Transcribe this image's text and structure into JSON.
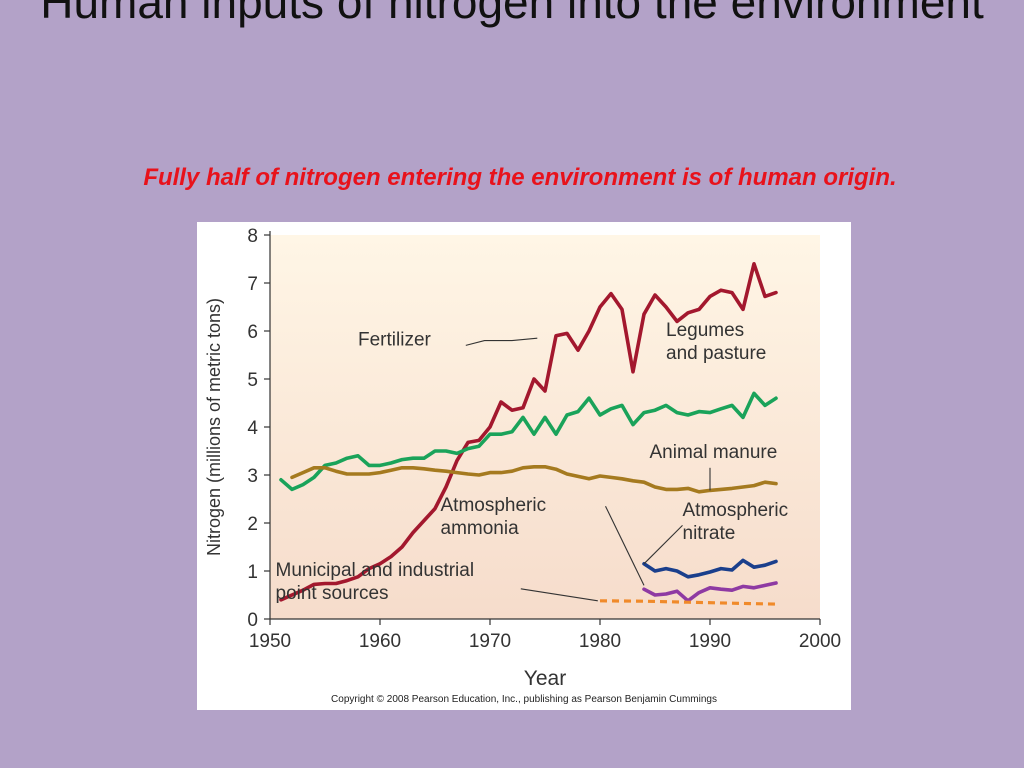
{
  "slide": {
    "title": "Human inputs of nitrogen into the environment",
    "subtitle": "Fully half of nitrogen entering the environment is of human origin."
  },
  "copyright": "Copyright © 2008 Pearson Education, Inc., publishing as Pearson Benjamin Cummings",
  "colors": {
    "fertilizer": "#a3182e",
    "legumes": "#1aa35a",
    "manure": "#a57a1f",
    "ammonia": "#8e3aa3",
    "nitrate": "#1a3f8c",
    "point_sources": "#f08a2a",
    "plot_gradient_top": "#fff6e6",
    "plot_gradient_bottom": "#f6dccb"
  },
  "chart_data": {
    "type": "line",
    "xlabel": "Year",
    "ylabel": "Nitrogen (millions of metric tons)",
    "xlim": [
      1950,
      2000
    ],
    "ylim": [
      0,
      8
    ],
    "xticks": [
      1950,
      1960,
      1970,
      1980,
      1990,
      2000
    ],
    "yticks": [
      0,
      1,
      2,
      3,
      4,
      5,
      6,
      7,
      8
    ],
    "grid": false,
    "legend": "none",
    "series": [
      {
        "name": "Fertilizer",
        "color_key": "fertilizer",
        "dashed": false,
        "x": [
          1951,
          1952,
          1953,
          1954,
          1955,
          1956,
          1957,
          1958,
          1959,
          1960,
          1961,
          1962,
          1963,
          1964,
          1965,
          1966,
          1967,
          1968,
          1969,
          1970,
          1971,
          1972,
          1973,
          1974,
          1975,
          1976,
          1977,
          1978,
          1979,
          1980,
          1981,
          1982,
          1983,
          1984,
          1985,
          1986,
          1987,
          1988,
          1989,
          1990,
          1991,
          1992,
          1993,
          1994,
          1995,
          1996
        ],
        "y": [
          0.4,
          0.5,
          0.6,
          0.72,
          0.74,
          0.74,
          0.8,
          0.88,
          1.05,
          1.15,
          1.3,
          1.5,
          1.8,
          2.05,
          2.3,
          2.75,
          3.3,
          3.68,
          3.72,
          4.0,
          4.52,
          4.35,
          4.4,
          5.0,
          4.75,
          5.9,
          5.95,
          5.6,
          6.0,
          6.5,
          6.78,
          6.45,
          5.15,
          6.35,
          6.75,
          6.5,
          6.2,
          6.38,
          6.45,
          6.72,
          6.85,
          6.8,
          6.45,
          7.4,
          6.72,
          6.8
        ]
      },
      {
        "name": "Legumes and pasture",
        "color_key": "legumes",
        "dashed": false,
        "x": [
          1951,
          1952,
          1953,
          1954,
          1955,
          1956,
          1957,
          1958,
          1959,
          1960,
          1961,
          1962,
          1963,
          1964,
          1965,
          1966,
          1967,
          1968,
          1969,
          1970,
          1971,
          1972,
          1973,
          1974,
          1975,
          1976,
          1977,
          1978,
          1979,
          1980,
          1981,
          1982,
          1983,
          1984,
          1985,
          1986,
          1987,
          1988,
          1989,
          1990,
          1991,
          1992,
          1993,
          1994,
          1995,
          1996
        ],
        "y": [
          2.9,
          2.7,
          2.8,
          2.95,
          3.2,
          3.25,
          3.35,
          3.4,
          3.2,
          3.2,
          3.25,
          3.32,
          3.35,
          3.35,
          3.5,
          3.5,
          3.45,
          3.55,
          3.6,
          3.85,
          3.85,
          3.9,
          4.2,
          3.85,
          4.2,
          3.85,
          4.25,
          4.32,
          4.6,
          4.25,
          4.38,
          4.45,
          4.05,
          4.3,
          4.35,
          4.45,
          4.3,
          4.25,
          4.32,
          4.3,
          4.38,
          4.45,
          4.2,
          4.7,
          4.45,
          4.6
        ]
      },
      {
        "name": "Animal manure",
        "color_key": "manure",
        "dashed": false,
        "x": [
          1952,
          1953,
          1954,
          1955,
          1956,
          1957,
          1958,
          1959,
          1960,
          1961,
          1962,
          1963,
          1964,
          1965,
          1966,
          1967,
          1968,
          1969,
          1970,
          1971,
          1972,
          1973,
          1974,
          1975,
          1976,
          1977,
          1978,
          1979,
          1980,
          1981,
          1982,
          1983,
          1984,
          1985,
          1986,
          1987,
          1988,
          1989,
          1990,
          1991,
          1992,
          1993,
          1994,
          1995,
          1996
        ],
        "y": [
          2.95,
          3.05,
          3.15,
          3.15,
          3.08,
          3.02,
          3.02,
          3.02,
          3.05,
          3.1,
          3.15,
          3.15,
          3.13,
          3.1,
          3.08,
          3.05,
          3.02,
          3.0,
          3.05,
          3.05,
          3.08,
          3.15,
          3.17,
          3.17,
          3.12,
          3.02,
          2.97,
          2.92,
          2.98,
          2.95,
          2.92,
          2.88,
          2.85,
          2.75,
          2.7,
          2.7,
          2.72,
          2.65,
          2.68,
          2.7,
          2.72,
          2.75,
          2.78,
          2.85,
          2.82
        ]
      },
      {
        "name": "Atmospheric nitrate",
        "color_key": "nitrate",
        "dashed": false,
        "x": [
          1984,
          1985,
          1986,
          1987,
          1988,
          1989,
          1990,
          1991,
          1992,
          1993,
          1994,
          1995,
          1996
        ],
        "y": [
          1.15,
          1.0,
          1.05,
          1.0,
          0.88,
          0.92,
          0.98,
          1.05,
          1.02,
          1.22,
          1.08,
          1.12,
          1.2
        ]
      },
      {
        "name": "Atmospheric ammonia",
        "color_key": "ammonia",
        "dashed": false,
        "x": [
          1984,
          1985,
          1986,
          1987,
          1988,
          1989,
          1990,
          1991,
          1992,
          1993,
          1994,
          1995,
          1996
        ],
        "y": [
          0.62,
          0.5,
          0.52,
          0.58,
          0.38,
          0.55,
          0.65,
          0.62,
          0.6,
          0.68,
          0.65,
          0.7,
          0.75
        ]
      },
      {
        "name": "Municipal and industrial point sources",
        "color_key": "point_sources",
        "dashed": true,
        "x": [
          1980,
          1984,
          1988,
          1992,
          1996
        ],
        "y": [
          0.38,
          0.37,
          0.35,
          0.33,
          0.31
        ]
      }
    ],
    "annotations": [
      {
        "lines": [
          "Fertilizer"
        ],
        "x": 1958.0,
        "y": 5.7,
        "pointer": [
          [
            1967.8,
            5.7
          ],
          [
            1969.5,
            5.8
          ],
          [
            1972.0,
            5.8
          ],
          [
            1974.3,
            5.85
          ]
        ]
      },
      {
        "lines": [
          "Legumes",
          "and pasture"
        ],
        "x": 1986.0,
        "y": 5.9,
        "pointer": null
      },
      {
        "lines": [
          "Animal manure"
        ],
        "x": 1984.5,
        "y": 3.35,
        "pointer": [
          [
            1990.0,
            3.15
          ],
          [
            1990.0,
            2.68
          ]
        ]
      },
      {
        "lines": [
          "Atmospheric",
          "ammonia"
        ],
        "x": 1965.5,
        "y": 2.25,
        "pointer": [
          [
            1980.5,
            2.35
          ],
          [
            1984.0,
            0.7
          ]
        ]
      },
      {
        "lines": [
          "Atmospheric",
          "nitrate"
        ],
        "x": 1987.5,
        "y": 2.15,
        "pointer": [
          [
            1987.5,
            1.95
          ],
          [
            1984.0,
            1.15
          ]
        ]
      },
      {
        "lines": [
          "Municipal and industrial",
          "point sources"
        ],
        "x": 1950.5,
        "y": 0.9,
        "pointer": [
          [
            1972.8,
            0.63
          ],
          [
            1979.8,
            0.38
          ]
        ]
      }
    ]
  }
}
